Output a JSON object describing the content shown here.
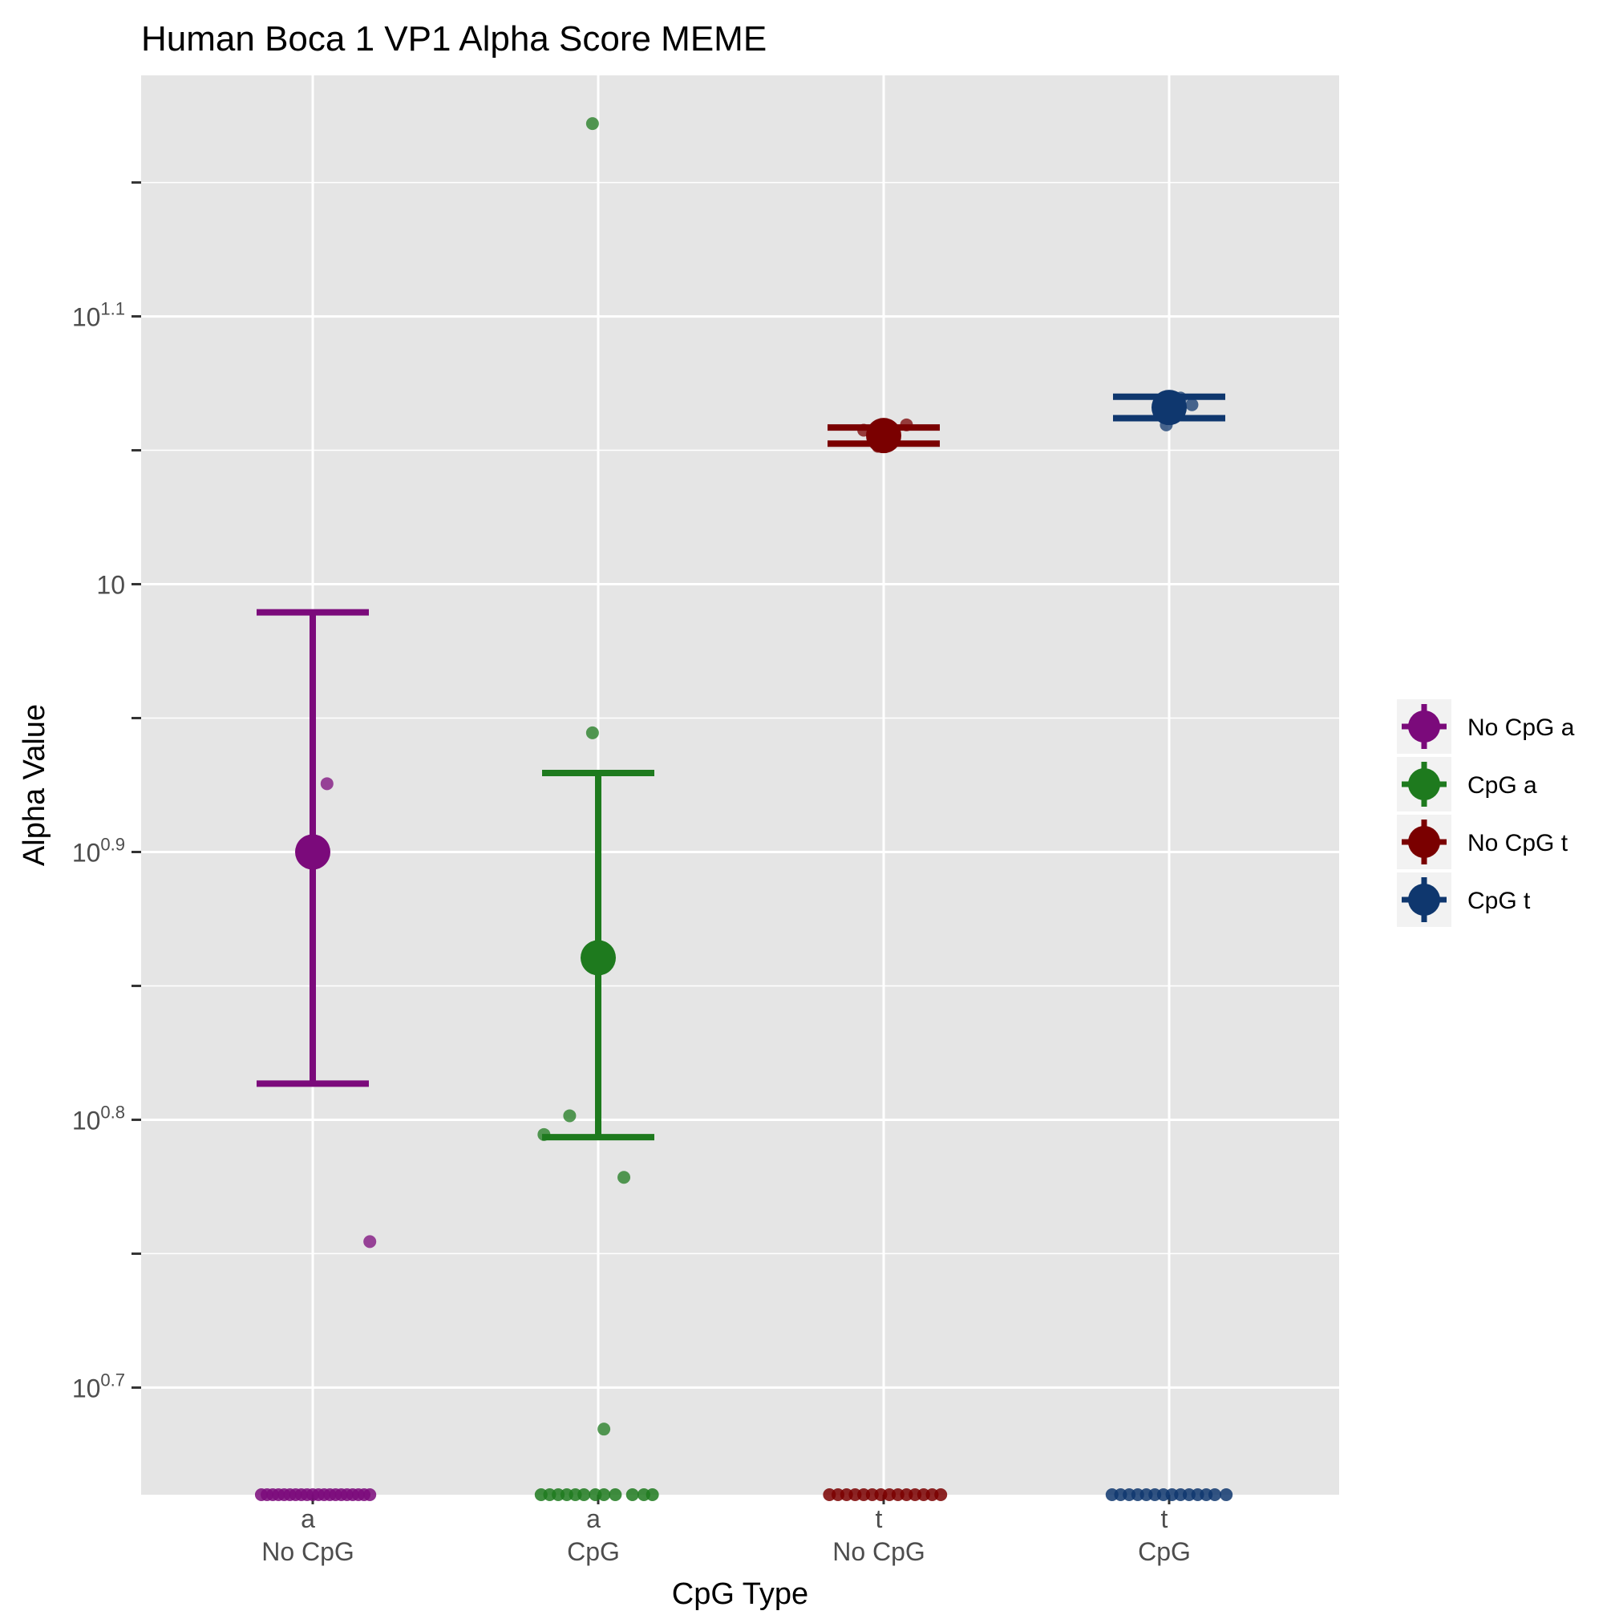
{
  "chart_data": {
    "type": "scatter",
    "title": "Human Boca 1 VP1 Alpha Score MEME",
    "xlabel": "CpG Type",
    "ylabel": "Alpha Value",
    "yscale": "log10",
    "ylim_log10": [
      0.66,
      1.19
    ],
    "y_ticks": [
      {
        "base": "10",
        "exp": "0.7",
        "log10": 0.7
      },
      {
        "base": "10",
        "exp": "0.8",
        "log10": 0.8
      },
      {
        "base": "10",
        "exp": "0.9",
        "log10": 0.9
      },
      {
        "base": "10",
        "exp": "",
        "log10": 1.0
      },
      {
        "base": "10",
        "exp": "1.1",
        "log10": 1.1
      }
    ],
    "y_minor_log10": [
      0.75,
      0.85,
      0.95,
      1.05,
      1.15
    ],
    "grid": true,
    "legend_position": "right",
    "categories": [
      {
        "line1": "a",
        "line2": "No CpG"
      },
      {
        "line1": "a",
        "line2": "CpG"
      },
      {
        "line1": "t",
        "line2": "No CpG"
      },
      {
        "line1": "t",
        "line2": "CpG"
      }
    ],
    "series": [
      {
        "name": "No CpG a",
        "color": "#7b0a7b",
        "category": 0,
        "mean_log10": 0.9,
        "ci_log10": [
          0.8135,
          0.9895
        ],
        "points": [
          {
            "dx": 0.05,
            "log10": 0.9255
          },
          {
            "dx": 0.2,
            "log10": 0.7545
          }
        ],
        "floor_points_dx": [
          -0.18,
          -0.16,
          -0.14,
          -0.12,
          -0.1,
          -0.08,
          -0.06,
          -0.04,
          -0.02,
          0.0,
          0.02,
          0.04,
          0.06,
          0.08,
          0.1,
          0.12,
          0.14,
          0.16,
          0.18,
          0.2
        ]
      },
      {
        "name": "CpG a",
        "color": "#1e7a1e",
        "category": 1,
        "mean_log10": 0.8605,
        "ci_log10": [
          0.7935,
          0.9295
        ],
        "points": [
          {
            "dx": -0.02,
            "log10": 1.172
          },
          {
            "dx": -0.02,
            "log10": 0.9445
          },
          {
            "dx": -0.1,
            "log10": 0.8015
          },
          {
            "dx": -0.19,
            "log10": 0.7945
          },
          {
            "dx": 0.09,
            "log10": 0.7785
          },
          {
            "dx": 0.02,
            "log10": 0.6845
          }
        ],
        "floor_points_dx": [
          -0.2,
          -0.17,
          -0.14,
          -0.11,
          -0.08,
          -0.05,
          -0.01,
          0.02,
          0.06,
          0.12,
          0.16,
          0.19
        ]
      },
      {
        "name": "No CpG t",
        "color": "#7a0000",
        "category": 2,
        "mean_log10": 1.0555,
        "ci_log10": [
          1.0525,
          1.0585
        ],
        "points": [
          {
            "dx": -0.07,
            "log10": 1.0575
          },
          {
            "dx": 0.08,
            "log10": 1.0595
          },
          {
            "dx": -0.02,
            "log10": 1.0515
          },
          {
            "dx": 0.03,
            "log10": 1.0545
          },
          {
            "dx": 0.0,
            "log10": 1.0565
          }
        ],
        "floor_points_dx": [
          -0.19,
          -0.16,
          -0.13,
          -0.1,
          -0.07,
          -0.04,
          -0.01,
          0.02,
          0.05,
          0.08,
          0.11,
          0.14,
          0.17,
          0.2
        ]
      },
      {
        "name": "CpG t",
        "color": "#0f376e",
        "category": 3,
        "mean_log10": 1.066,
        "ci_log10": [
          1.062,
          1.07
        ],
        "points": [
          {
            "dx": 0.04,
            "log10": 1.0695
          },
          {
            "dx": 0.08,
            "log10": 1.067
          },
          {
            "dx": -0.01,
            "log10": 1.0595
          },
          {
            "dx": 0.02,
            "log10": 1.0645
          },
          {
            "dx": -0.03,
            "log10": 1.0635
          }
        ],
        "floor_points_dx": [
          -0.2,
          -0.17,
          -0.14,
          -0.11,
          -0.08,
          -0.05,
          -0.02,
          0.01,
          0.04,
          0.07,
          0.1,
          0.13,
          0.16,
          0.2
        ]
      }
    ]
  }
}
